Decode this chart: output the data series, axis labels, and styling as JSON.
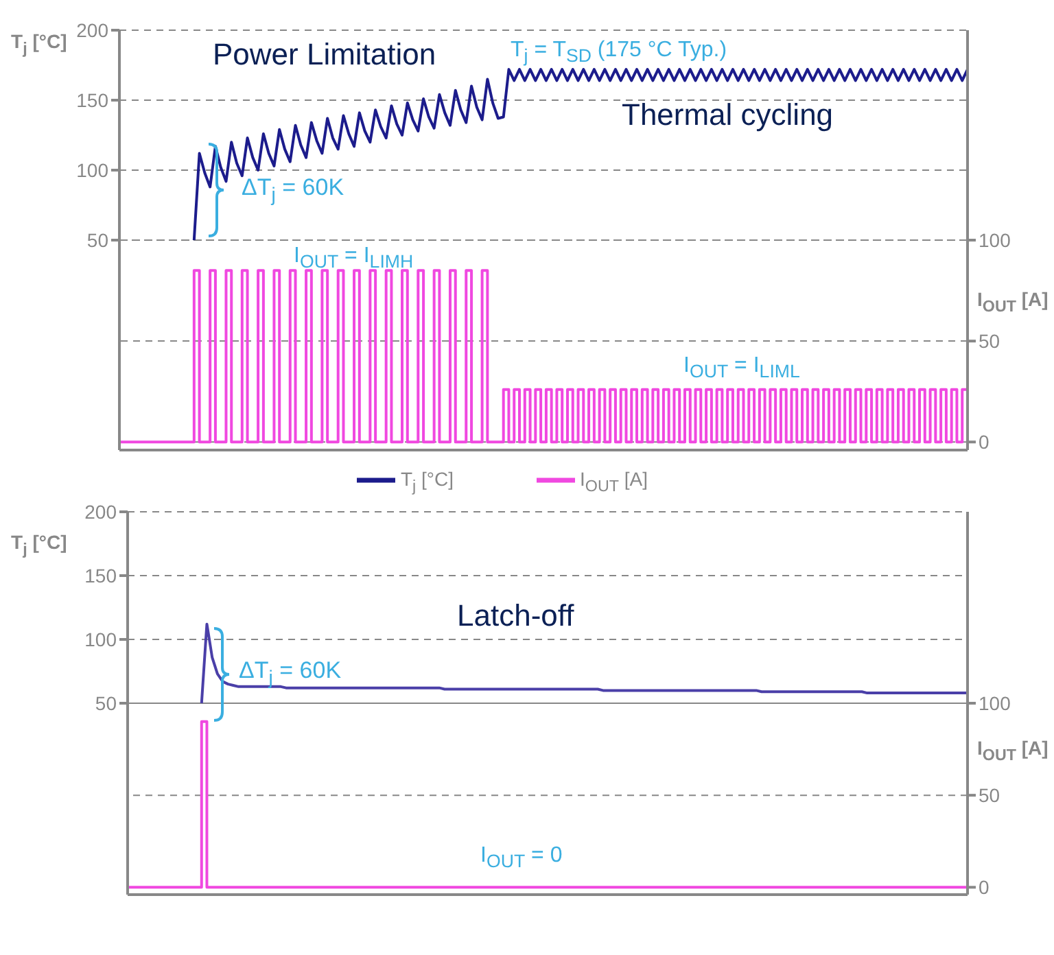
{
  "chart_data": [
    {
      "type": "line",
      "categories": [
        null,
        null,
        null,
        null,
        null,
        null,
        null,
        null,
        null,
        null,
        null,
        null,
        null,
        null,
        null,
        null,
        null,
        null,
        null,
        null,
        null,
        null,
        null,
        null,
        null,
        null,
        null,
        null,
        null,
        null,
        null,
        null,
        null,
        null,
        null,
        null,
        null,
        null,
        null,
        null,
        null,
        null,
        null,
        null,
        null,
        null,
        null,
        null,
        null,
        null,
        null,
        null,
        null,
        null,
        null,
        null,
        null,
        null,
        null,
        null,
        null,
        null,
        null,
        null,
        null,
        null,
        null,
        null,
        null,
        null,
        null,
        null,
        null,
        null,
        null,
        null,
        null,
        null,
        null,
        null,
        null,
        null,
        null,
        null,
        null,
        null,
        null,
        null,
        null,
        null,
        null,
        null,
        null,
        null,
        null,
        null,
        null,
        null,
        null,
        null,
        null,
        null,
        null,
        null,
        null,
        null,
        null,
        null,
        null,
        null,
        null,
        null,
        null,
        null,
        null,
        null,
        null,
        null,
        null,
        null,
        null,
        null,
        null,
        null,
        null,
        null,
        null,
        null,
        null,
        null,
        null,
        null,
        null,
        null,
        null,
        null,
        null,
        null,
        null,
        null,
        null,
        null,
        null,
        null,
        null,
        null,
        null,
        null,
        null,
        null,
        null,
        null,
        null,
        null,
        null,
        null,
        null,
        null,
        null,
        null
      ],
      "ylabel": "T$_{j}$ [°C]",
      "y2label": "I$_{OUT}$ [A]",
      "annotations": [
        "Power Limitation",
        "T$_{j}$ = T$_{SD}$ (175 °C Typ.)",
        "Thermal cycling",
        "ΔT$_{j}$ = 60K",
        "I$_{OUT}$ = I$_{LIMH}$",
        "I$_{OUT}$ = I$_{LIML}$"
      ],
      "ylim": [
        -100,
        200
      ],
      "yticks": [
        50,
        100,
        150,
        200
      ],
      "y2lim": [
        -4,
        204
      ],
      "y2ticks": [
        0,
        50,
        100
      ],
      "grid": "y",
      "legend": "bottom",
      "tick_labels": "y",
      "series": [
        {
          "name": "T$_{j}$ [°C]",
          "type": "line",
          "color": "#1c1c8c",
          "values": [
            null,
            null,
            null,
            null,
            null,
            null,
            null,
            null,
            null,
            null,
            null,
            null,
            null,
            null,
            50,
            112,
            98,
            88,
            117,
            102,
            92,
            120,
            105,
            96,
            123,
            109,
            100,
            126,
            112,
            103,
            129,
            115,
            106,
            132,
            118,
            109,
            134,
            121,
            112,
            137,
            123,
            115,
            139,
            126,
            117,
            141,
            128,
            120,
            143,
            131,
            123,
            146,
            133,
            125,
            148,
            136,
            128,
            151,
            138,
            130,
            154,
            141,
            132,
            157,
            143,
            134,
            160,
            145,
            136,
            165,
            148,
            137,
            138,
            172,
            164,
            172,
            164,
            172,
            164,
            172,
            164,
            172,
            164,
            172,
            164,
            172,
            164,
            172,
            164,
            172,
            164,
            172,
            164,
            172,
            164,
            172,
            164,
            172,
            164,
            172,
            164,
            172,
            164,
            172,
            164,
            172,
            164,
            172,
            164,
            172,
            164,
            172,
            164,
            172,
            164,
            172,
            164,
            172,
            164,
            172,
            164,
            172,
            164,
            172,
            164,
            172,
            164,
            172,
            164,
            172,
            164,
            172,
            164,
            172,
            164,
            172,
            164,
            172,
            164,
            172,
            164,
            172,
            164,
            172,
            164,
            172,
            164,
            172,
            164,
            172,
            164,
            172,
            164,
            172,
            164,
            172,
            164,
            172,
            164,
            172
          ]
        },
        {
          "name": "I$_{OUT}$ [A]",
          "type": "step",
          "axis": "y2",
          "color": "#f048e0",
          "values": [
            0,
            0,
            0,
            0,
            0,
            0,
            0,
            0,
            0,
            0,
            0,
            0,
            0,
            0,
            85,
            0,
            0,
            85,
            0,
            0,
            85,
            0,
            0,
            85,
            0,
            0,
            85,
            0,
            0,
            85,
            0,
            0,
            85,
            0,
            0,
            85,
            0,
            0,
            85,
            0,
            0,
            85,
            0,
            0,
            85,
            0,
            0,
            85,
            0,
            0,
            85,
            0,
            0,
            85,
            0,
            0,
            85,
            0,
            0,
            85,
            0,
            0,
            85,
            0,
            0,
            85,
            0,
            0,
            85,
            0,
            0,
            0,
            26,
            0,
            26,
            0,
            26,
            0,
            26,
            0,
            26,
            0,
            26,
            0,
            26,
            0,
            26,
            0,
            26,
            0,
            26,
            0,
            26,
            0,
            26,
            0,
            26,
            0,
            26,
            0,
            26,
            0,
            26,
            0,
            26,
            0,
            26,
            0,
            26,
            0,
            26,
            0,
            26,
            0,
            26,
            0,
            26,
            0,
            26,
            0,
            26,
            0,
            26,
            0,
            26,
            0,
            26,
            0,
            26,
            0,
            26,
            0,
            26,
            0,
            26,
            0,
            26,
            0,
            26,
            0,
            26,
            0,
            26,
            0,
            26,
            0,
            26,
            0,
            26,
            0,
            26,
            0,
            26,
            0,
            26,
            0,
            26,
            0,
            26,
            0
          ]
        }
      ]
    },
    {
      "type": "line",
      "categories": [
        null,
        null,
        null,
        null,
        null,
        null,
        null,
        null,
        null,
        null,
        null,
        null,
        null,
        null,
        null,
        null,
        null,
        null,
        null,
        null,
        null,
        null,
        null,
        null,
        null,
        null,
        null,
        null,
        null,
        null,
        null,
        null,
        null,
        null,
        null,
        null,
        null,
        null,
        null,
        null,
        null,
        null,
        null,
        null,
        null,
        null,
        null,
        null,
        null,
        null,
        null,
        null,
        null,
        null,
        null,
        null,
        null,
        null,
        null,
        null,
        null,
        null,
        null,
        null,
        null,
        null,
        null,
        null,
        null,
        null,
        null,
        null,
        null,
        null,
        null,
        null,
        null,
        null,
        null,
        null,
        null,
        null,
        null,
        null,
        null,
        null,
        null,
        null,
        null,
        null,
        null,
        null,
        null,
        null,
        null,
        null,
        null,
        null,
        null,
        null,
        null,
        null,
        null,
        null,
        null,
        null,
        null,
        null,
        null,
        null,
        null,
        null,
        null,
        null,
        null,
        null,
        null,
        null,
        null,
        null,
        null,
        null,
        null,
        null,
        null,
        null,
        null,
        null,
        null,
        null,
        null,
        null,
        null,
        null,
        null,
        null,
        null,
        null,
        null,
        null,
        null,
        null,
        null,
        null,
        null,
        null,
        null,
        null,
        null,
        null,
        null,
        null,
        null,
        null,
        null,
        null,
        null,
        null,
        null,
        null
      ],
      "ylabel": "T$_{j}$ [°C]",
      "y2label": "I$_{OUT}$ [A]",
      "annotations": [
        "Latch-off",
        "ΔT$_{j}$ = 60K",
        "I$_{OUT}$ = 0"
      ],
      "ylim": [
        -100,
        200
      ],
      "yticks": [
        50,
        100,
        150,
        200
      ],
      "y2lim": [
        -4,
        204
      ],
      "y2ticks": [
        0,
        50,
        100
      ],
      "grid": "y",
      "tick_labels": "y",
      "series": [
        {
          "type": "line",
          "color": "#4a3fa8",
          "values": [
            null,
            null,
            null,
            null,
            null,
            null,
            null,
            null,
            null,
            null,
            null,
            null,
            null,
            null,
            50,
            112,
            86,
            73,
            67,
            65,
            64,
            63,
            63,
            63,
            63,
            63,
            63,
            63,
            63,
            63,
            62,
            62,
            62,
            62,
            62,
            62,
            62,
            62,
            62,
            62,
            62,
            62,
            62,
            62,
            62,
            62,
            62,
            62,
            62,
            62,
            62,
            62,
            62,
            62,
            62,
            62,
            62,
            62,
            62,
            62,
            61,
            61,
            61,
            61,
            61,
            61,
            61,
            61,
            61,
            61,
            61,
            61,
            61,
            61,
            61,
            61,
            61,
            61,
            61,
            61,
            61,
            61,
            61,
            61,
            61,
            61,
            61,
            61,
            61,
            61,
            60,
            60,
            60,
            60,
            60,
            60,
            60,
            60,
            60,
            60,
            60,
            60,
            60,
            60,
            60,
            60,
            60,
            60,
            60,
            60,
            60,
            60,
            60,
            60,
            60,
            60,
            60,
            60,
            60,
            60,
            59,
            59,
            59,
            59,
            59,
            59,
            59,
            59,
            59,
            59,
            59,
            59,
            59,
            59,
            59,
            59,
            59,
            59,
            59,
            59,
            58,
            58,
            58,
            58,
            58,
            58,
            58,
            58,
            58,
            58,
            58,
            58,
            58,
            58,
            58,
            58,
            58,
            58,
            58,
            58
          ]
        },
        {
          "type": "step",
          "axis": "y2",
          "color": "#f048e0",
          "values": [
            0,
            0,
            0,
            0,
            0,
            0,
            0,
            0,
            0,
            0,
            0,
            0,
            0,
            0,
            90,
            0,
            0,
            0,
            0,
            0,
            0,
            0,
            0,
            0,
            0,
            0,
            0,
            0,
            0,
            0,
            0,
            0,
            0,
            0,
            0,
            0,
            0,
            0,
            0,
            0,
            0,
            0,
            0,
            0,
            0,
            0,
            0,
            0,
            0,
            0,
            0,
            0,
            0,
            0,
            0,
            0,
            0,
            0,
            0,
            0,
            0,
            0,
            0,
            0,
            0,
            0,
            0,
            0,
            0,
            0,
            0,
            0,
            0,
            0,
            0,
            0,
            0,
            0,
            0,
            0,
            0,
            0,
            0,
            0,
            0,
            0,
            0,
            0,
            0,
            0,
            0,
            0,
            0,
            0,
            0,
            0,
            0,
            0,
            0,
            0,
            0,
            0,
            0,
            0,
            0,
            0,
            0,
            0,
            0,
            0,
            0,
            0,
            0,
            0,
            0,
            0,
            0,
            0,
            0,
            0,
            0,
            0,
            0,
            0,
            0,
            0,
            0,
            0,
            0,
            0,
            0,
            0,
            0,
            0,
            0,
            0,
            0,
            0,
            0,
            0,
            0,
            0,
            0,
            0,
            0,
            0,
            0,
            0,
            0,
            0,
            0,
            0,
            0,
            0,
            0,
            0,
            0,
            0,
            0,
            0
          ]
        }
      ]
    }
  ]
}
